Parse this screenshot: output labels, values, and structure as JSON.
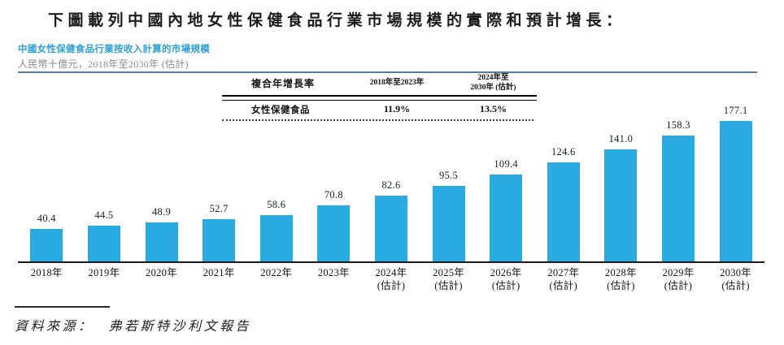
{
  "page": {
    "title": "下圖載列中國內地女性保健食品行業市場規模的實際和預計增長："
  },
  "figure": {
    "heading": "中國女性保健食品行業按收入計算的市場規模",
    "subtitle": "人民幣十億元，2018年至2030年 (估計)"
  },
  "cagr_table": {
    "header": {
      "metric": "複合年增長率",
      "period1": "2018年至2023年",
      "period2_line1": "2024年至",
      "period2_line2": "2030年 (估計)"
    },
    "row": {
      "label": "女性保健食品",
      "period1_value": "11.9%",
      "period2_value": "13.5%"
    }
  },
  "chart_data": {
    "type": "bar",
    "title": "中國女性保健食品行業按收入計算的市場規模",
    "ylabel": "人民幣十億元",
    "categories": [
      "2018年",
      "2019年",
      "2020年",
      "2021年",
      "2022年",
      "2023年",
      "2024年",
      "2025年",
      "2026年",
      "2027年",
      "2028年",
      "2029年",
      "2030年"
    ],
    "estimate_note": "(估計)",
    "estimate_from_index": 6,
    "values": [
      40.4,
      44.5,
      48.9,
      52.7,
      58.6,
      70.8,
      82.6,
      95.5,
      109.4,
      124.6,
      141.0,
      158.3,
      177.1
    ],
    "ylim": [
      0,
      190
    ],
    "grid": false,
    "legend": "none",
    "bar_color": "#29ABE2"
  },
  "source": {
    "label": "資料來源：",
    "text": "弗若斯特沙利文報告"
  },
  "colors": {
    "heading_blue": "#2DA0D6",
    "rule_slate": "#5D7C98",
    "bar_blue": "#29ABE2"
  }
}
